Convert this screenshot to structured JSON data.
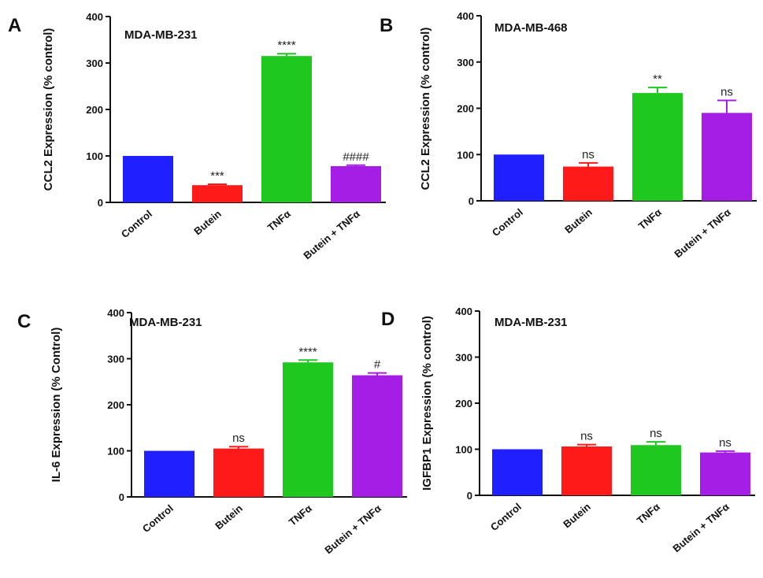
{
  "figure": {
    "category_labels": [
      "Control",
      "Butein",
      "TNFα",
      "Butein + TNFα"
    ],
    "colors": {
      "control": "#1f1fff",
      "butein": "#ff1a1a",
      "tnfa": "#1ec81e",
      "butein_tnfa": "#a51ee6"
    }
  },
  "chart_data": [
    {
      "panel": "A",
      "type": "bar",
      "annotation": "MDA-MB-231",
      "ylabel": "CCL2 Expression (% control)",
      "xlabel": "",
      "ylim": [
        0,
        400
      ],
      "yticks": [
        0,
        100,
        200,
        300,
        400
      ],
      "categories": [
        "Control",
        "Butein",
        "TNFα",
        "Butein + TNFα"
      ],
      "values": [
        100,
        37,
        315,
        78
      ],
      "errors": [
        0,
        2,
        5,
        2
      ],
      "significance": [
        "",
        "***",
        "****",
        "####"
      ]
    },
    {
      "panel": "B",
      "type": "bar",
      "annotation": "MDA-MB-468",
      "ylabel": "CCL2 Expression (% control)",
      "xlabel": "",
      "ylim": [
        0,
        400
      ],
      "yticks": [
        0,
        100,
        200,
        300,
        400
      ],
      "categories": [
        "Control",
        "Butein",
        "TNFα",
        "Butein + TNFα"
      ],
      "values": [
        100,
        74,
        233,
        190
      ],
      "errors": [
        0,
        8,
        12,
        27
      ],
      "significance": [
        "",
        "ns",
        "**",
        "ns"
      ]
    },
    {
      "panel": "C",
      "type": "bar",
      "annotation": "MDA-MB-231",
      "ylabel": "IL-6 Expression (% Control)",
      "xlabel": "",
      "ylim": [
        0,
        400
      ],
      "yticks": [
        0,
        100,
        200,
        300,
        400
      ],
      "categories": [
        "Control",
        "Butein",
        "TNFα",
        "Butein + TNFα"
      ],
      "values": [
        100,
        105,
        292,
        264
      ],
      "errors": [
        0,
        4,
        5,
        5
      ],
      "significance": [
        "",
        "ns",
        "****",
        "#"
      ]
    },
    {
      "panel": "D",
      "type": "bar",
      "annotation": "MDA-MB-231",
      "ylabel": "IGFBP1 Expression (% control)",
      "xlabel": "",
      "ylim": [
        0,
        400
      ],
      "yticks": [
        0,
        100,
        200,
        300,
        400
      ],
      "categories": [
        "Control",
        "Butein",
        "TNFα",
        "Butein + TNFα"
      ],
      "values": [
        100,
        106,
        109,
        93
      ],
      "errors": [
        0,
        4,
        7,
        3
      ],
      "significance": [
        "",
        "ns",
        "ns",
        "ns"
      ]
    }
  ]
}
